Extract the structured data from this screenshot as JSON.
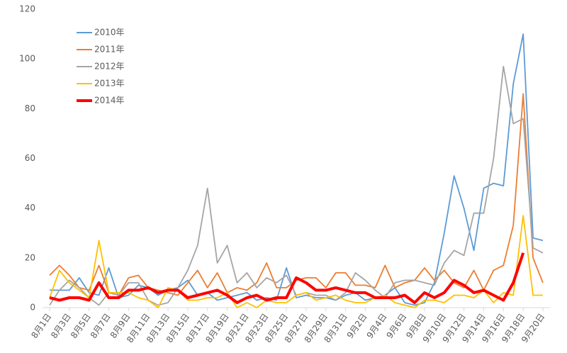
{
  "chart_data": {
    "type": "line",
    "categories": [
      "8月1日",
      null,
      "8月3日",
      null,
      "8月5日",
      null,
      "8月7日",
      null,
      "8月9日",
      null,
      "8月11日",
      null,
      "8月13日",
      null,
      "8月15日",
      null,
      "8月17日",
      null,
      "8月19日",
      null,
      "8月21日",
      null,
      "8月23日",
      null,
      "8月25日",
      null,
      "8月27日",
      null,
      "8月29日",
      null,
      "8月31日",
      null,
      "9月2日",
      null,
      "9月4日",
      null,
      "9月6日",
      null,
      "9月8日",
      null,
      "9月10日",
      null,
      "9月12日",
      null,
      "9月14日",
      null,
      "9月16日",
      null,
      "9月18日",
      null,
      "9月20日"
    ],
    "series": [
      {
        "name": "2010年",
        "color": "#5b9bd5",
        "values": [
          7,
          7,
          7,
          12,
          6,
          5,
          16,
          4,
          5,
          9,
          8,
          5,
          7,
          8,
          11,
          5,
          6,
          3,
          4,
          5,
          6,
          3,
          4,
          3,
          16,
          4,
          5,
          4,
          4,
          3,
          5,
          6,
          3,
          4,
          5,
          8,
          2,
          1,
          2,
          10,
          30,
          53,
          40,
          23,
          48,
          50,
          49,
          90,
          110,
          28,
          27
        ]
      },
      {
        "name": "2011年",
        "color": "#ed7d31",
        "values": [
          13,
          17,
          13,
          8,
          7,
          17,
          6,
          5,
          12,
          13,
          8,
          7,
          6,
          5,
          10,
          15,
          8,
          14,
          6,
          8,
          7,
          10,
          18,
          8,
          8,
          11,
          12,
          12,
          8,
          14,
          14,
          9,
          9,
          8,
          17,
          8,
          10,
          11,
          16,
          11,
          15,
          10,
          8,
          15,
          7,
          15,
          17,
          33,
          86,
          20,
          10
        ]
      },
      {
        "name": "2012年",
        "color": "#a5a5a5",
        "values": [
          1,
          7,
          11,
          8,
          4,
          1,
          6,
          5,
          10,
          10,
          3,
          1,
          2,
          8,
          15,
          25,
          48,
          18,
          25,
          10,
          14,
          8,
          12,
          10,
          13,
          5,
          6,
          5,
          5,
          3,
          6,
          14,
          11,
          7,
          4,
          10,
          11,
          11,
          10,
          9,
          18,
          23,
          21,
          38,
          38,
          60,
          97,
          74,
          76,
          24,
          22
        ]
      },
      {
        "name": "2013年",
        "color": "#ffc000",
        "values": [
          4,
          15,
          10,
          7,
          4,
          27,
          6,
          6,
          6,
          4,
          3,
          0,
          8,
          7,
          3,
          3,
          4,
          4,
          6,
          0,
          2,
          0,
          3,
          2,
          2,
          5,
          6,
          3,
          4,
          5,
          3,
          2,
          2,
          4,
          5,
          2,
          1,
          0,
          3,
          3,
          2,
          5,
          5,
          4,
          7,
          2,
          6,
          5,
          37,
          5,
          5
        ]
      },
      {
        "name": "2014年",
        "color": "#ff0000",
        "values": [
          4,
          3,
          4,
          4,
          3,
          10,
          4,
          4,
          7,
          7,
          8,
          6,
          7,
          7,
          4,
          5,
          6,
          7,
          5,
          2,
          4,
          5,
          3,
          4,
          4,
          12,
          10,
          7,
          7,
          8,
          7,
          6,
          6,
          4,
          4,
          4,
          5,
          2,
          6,
          4,
          6,
          11,
          9,
          6,
          7,
          5,
          3,
          10,
          22,
          null,
          null
        ]
      }
    ],
    "ylim": [
      0,
      120
    ],
    "yticks": [
      0,
      20,
      40,
      60,
      80,
      100,
      120
    ],
    "grid": false,
    "legend": "top-left"
  }
}
